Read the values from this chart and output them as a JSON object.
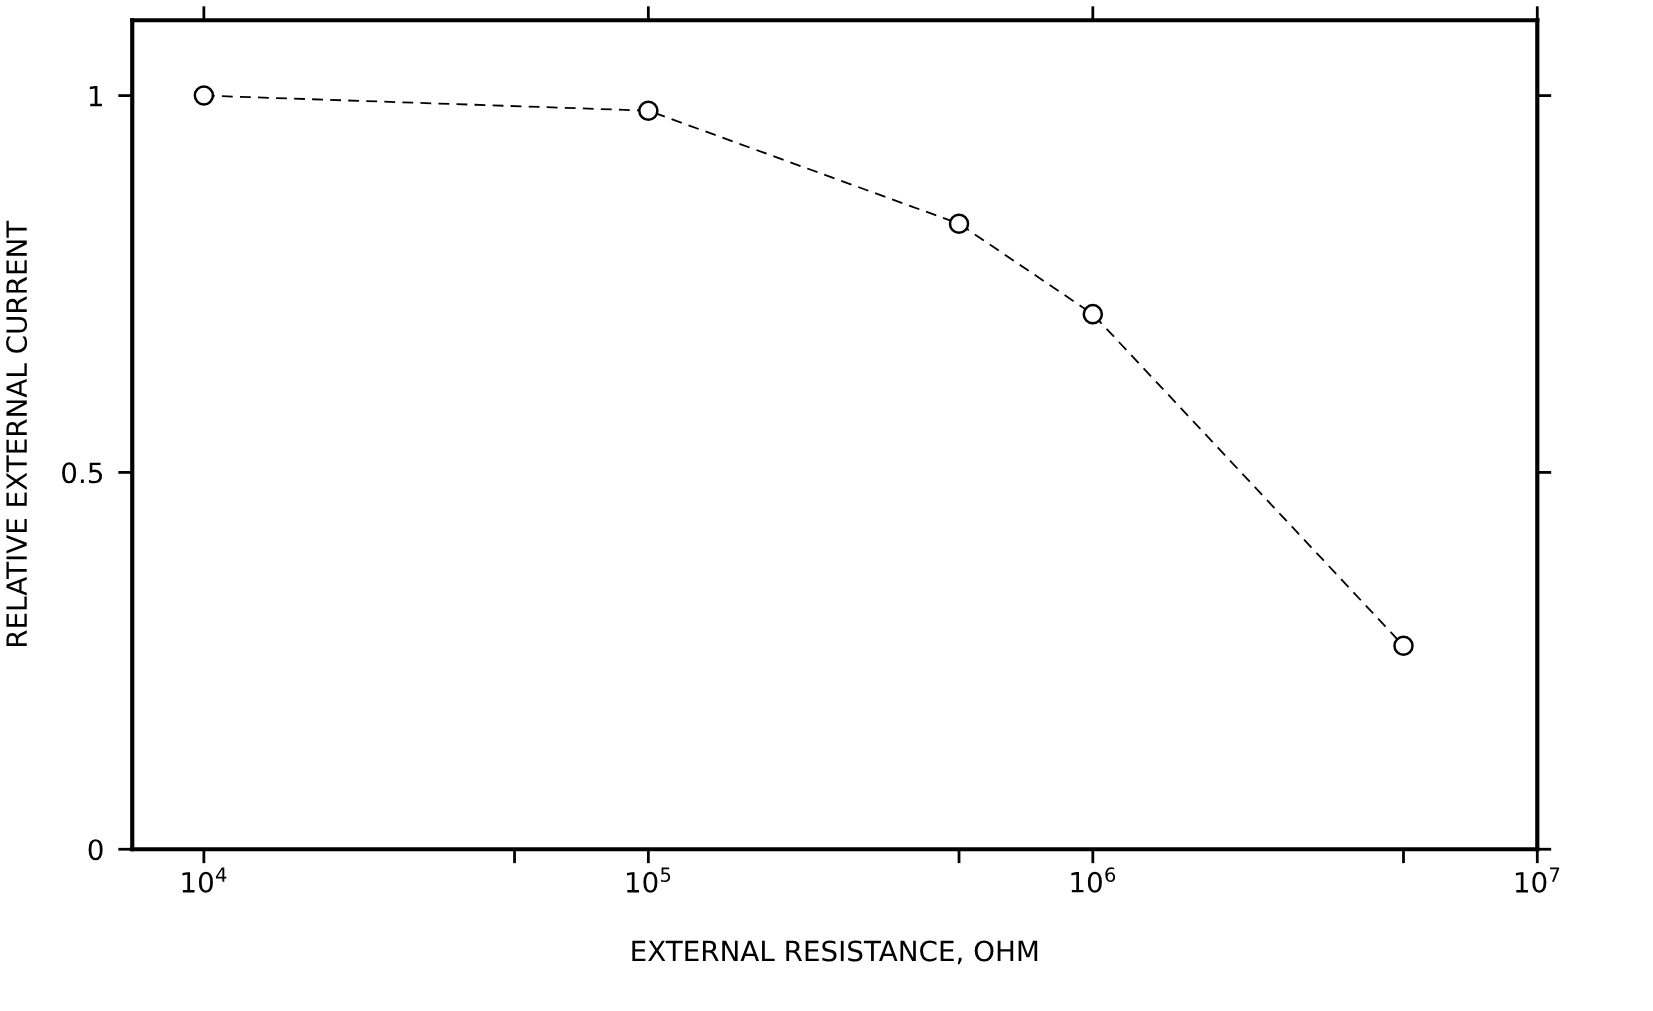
{
  "chart_data": {
    "type": "line",
    "xlabel": "EXTERNAL RESISTANCE, OHM",
    "ylabel": "RELATIVE EXTERNAL CURRENT",
    "log": "x",
    "x": [
      10000,
      100000,
      500000,
      1000000,
      5000000
    ],
    "series": [
      {
        "color": "#000000",
        "values": [
          1.0,
          0.98,
          0.83,
          0.71,
          0.27
        ]
      }
    ],
    "marker": "circle",
    "line_style": "dashed",
    "grid": false,
    "xlim": [
      6900,
      10000000
    ],
    "xticks": [
      {
        "value": 10000,
        "label": "10$^{4}$"
      },
      {
        "value": 50000,
        "label": null
      },
      {
        "value": 100000,
        "label": "10$^{5}$"
      },
      {
        "value": 500000,
        "label": null
      },
      {
        "value": 1000000,
        "label": "10$^{6}$"
      },
      {
        "value": 5000000,
        "label": null
      },
      {
        "value": 10000000,
        "label": "10$^{7}$"
      }
    ],
    "ylim": [
      0,
      1.1
    ],
    "yticks": [
      0,
      0.5,
      1
    ]
  }
}
